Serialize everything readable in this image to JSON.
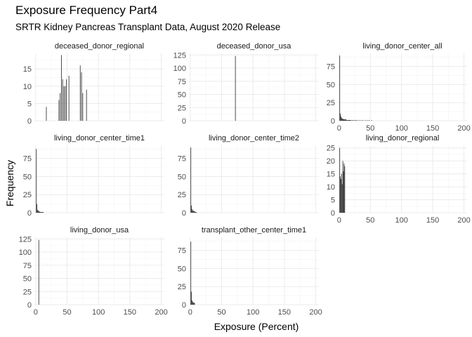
{
  "chart_data": {
    "type": "bar",
    "title": "Exposure Frequency Part4",
    "subtitle": "SRTR Kidney Pancreas Transplant Data, August 2020 Release",
    "xlabel": "Exposure (Percent)",
    "ylabel": "Frequency",
    "xlim": [
      -2,
      205
    ],
    "x_ticks": [
      0,
      50,
      100,
      150,
      200
    ],
    "grid": true,
    "legend": "none",
    "bar_color": "#3a3a3a",
    "panels": [
      {
        "name": "deceased_donor_regional",
        "ylim": [
          0,
          19.5
        ],
        "y_ticks": [
          0,
          5,
          10,
          15
        ],
        "bars": [
          [
            17,
            4
          ],
          [
            37,
            6
          ],
          [
            39,
            8
          ],
          [
            41,
            19
          ],
          [
            43,
            12
          ],
          [
            45,
            10
          ],
          [
            47,
            10
          ],
          [
            49,
            12
          ],
          [
            53,
            13
          ],
          [
            71,
            16
          ],
          [
            73,
            14
          ],
          [
            75,
            8
          ],
          [
            81,
            9
          ]
        ]
      },
      {
        "name": "deceased_donor_usa",
        "ylim": [
          0,
          128
        ],
        "y_ticks": [
          0,
          25,
          50,
          75,
          100,
          125
        ],
        "bars": [
          [
            72,
            123
          ]
        ]
      },
      {
        "name": "living_donor_center_all",
        "ylim": [
          0,
          93
        ],
        "y_ticks": [
          0,
          25,
          50,
          75
        ],
        "bars": [
          [
            1,
            90
          ],
          [
            2,
            10
          ],
          [
            3,
            6
          ],
          [
            4,
            4
          ],
          [
            5,
            3
          ],
          [
            6,
            3
          ],
          [
            7,
            2
          ],
          [
            8,
            2
          ],
          [
            9,
            2
          ],
          [
            10,
            2
          ],
          [
            11,
            2
          ],
          [
            12,
            1
          ],
          [
            13,
            1
          ],
          [
            14,
            1
          ],
          [
            15,
            1
          ],
          [
            16,
            1
          ],
          [
            17,
            1
          ],
          [
            18,
            1
          ],
          [
            19,
            1
          ],
          [
            21,
            1
          ],
          [
            23,
            1
          ],
          [
            25,
            1
          ],
          [
            27,
            1
          ],
          [
            29,
            1
          ],
          [
            32,
            1
          ],
          [
            35,
            1
          ],
          [
            38,
            1
          ],
          [
            42,
            1
          ],
          [
            45,
            1
          ],
          [
            48,
            1
          ],
          [
            52,
            1
          ]
        ]
      },
      {
        "name": "living_donor_center_time1",
        "ylim": [
          0,
          93
        ],
        "y_ticks": [
          0,
          25,
          50,
          75
        ],
        "bars": [
          [
            1,
            88
          ],
          [
            2,
            12
          ],
          [
            3,
            4
          ],
          [
            4,
            3
          ],
          [
            5,
            2
          ],
          [
            6,
            2
          ],
          [
            7,
            1
          ],
          [
            8,
            1
          ],
          [
            9,
            1
          ],
          [
            10,
            1
          ],
          [
            11,
            1
          ],
          [
            12,
            1
          ]
        ]
      },
      {
        "name": "living_donor_center_time2",
        "ylim": [
          0,
          93
        ],
        "y_ticks": [
          0,
          25,
          50,
          75
        ],
        "bars": [
          [
            1,
            90
          ],
          [
            2,
            10
          ],
          [
            3,
            5
          ],
          [
            4,
            3
          ],
          [
            5,
            3
          ],
          [
            6,
            2
          ],
          [
            7,
            2
          ],
          [
            8,
            1
          ],
          [
            9,
            1
          ],
          [
            10,
            1
          ]
        ]
      },
      {
        "name": "living_donor_regional",
        "ylim": [
          0,
          26
        ],
        "y_ticks": [
          0,
          5,
          10,
          15,
          20,
          25
        ],
        "bars": [
          [
            1,
            25
          ],
          [
            2,
            14
          ],
          [
            3,
            13
          ],
          [
            4,
            15
          ],
          [
            5,
            11
          ],
          [
            6,
            20
          ],
          [
            7,
            16
          ],
          [
            8,
            19
          ],
          [
            9,
            18
          ]
        ]
      },
      {
        "name": "living_donor_usa",
        "ylim": [
          0,
          128
        ],
        "y_ticks": [
          0,
          25,
          50,
          75,
          100,
          125
        ],
        "bars": [
          [
            5,
            123
          ]
        ]
      },
      {
        "name": "transplant_other_center_time1",
        "ylim": [
          0,
          93
        ],
        "y_ticks": [
          0,
          25,
          50,
          75
        ],
        "bars": [
          [
            1,
            87
          ],
          [
            2,
            18
          ],
          [
            3,
            6
          ],
          [
            4,
            4
          ],
          [
            5,
            3
          ],
          [
            6,
            3
          ],
          [
            7,
            2
          ]
        ]
      }
    ]
  }
}
